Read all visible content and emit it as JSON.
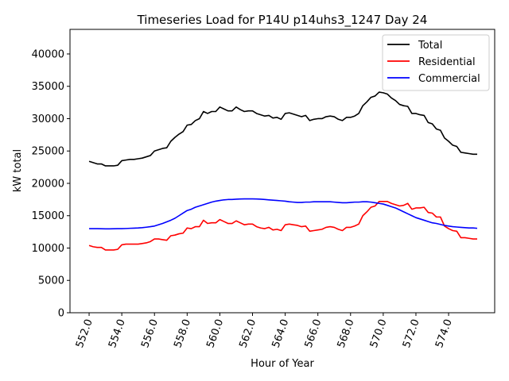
{
  "chart_data": {
    "type": "line",
    "title": "Timeseries Load for P14U p14uhs3_1247  Day 24",
    "xlabel": "Hour of Year",
    "ylabel": "kW total",
    "xlim": [
      550.83,
      576.82
    ],
    "ylim": [
      0,
      43800
    ],
    "x_ticks": [
      552,
      554,
      556,
      558,
      560,
      562,
      564,
      566,
      568,
      570,
      572,
      574
    ],
    "x_tick_labels": [
      "552.0",
      "554.0",
      "556.0",
      "558.0",
      "560.0",
      "562.0",
      "564.0",
      "566.0",
      "568.0",
      "570.0",
      "572.0",
      "574.0"
    ],
    "y_ticks": [
      0,
      5000,
      10000,
      15000,
      20000,
      25000,
      30000,
      35000,
      40000
    ],
    "y_tick_labels": [
      "0",
      "5000",
      "10000",
      "15000",
      "20000",
      "25000",
      "30000",
      "35000",
      "40000"
    ],
    "grid": false,
    "legend_position": "top-right",
    "x_start": 552.0,
    "x_step": 0.25,
    "series": [
      {
        "name": "Total",
        "color": "#000000",
        "values": [
          23400,
          23200,
          23000,
          23000,
          22700,
          22700,
          22700,
          22800,
          23500,
          23600,
          23700,
          23700,
          23800,
          23900,
          24100,
          24300,
          25000,
          25200,
          25400,
          25500,
          26500,
          27100,
          27600,
          28000,
          29000,
          29100,
          29700,
          30000,
          31100,
          30800,
          31100,
          31100,
          31800,
          31500,
          31200,
          31200,
          31800,
          31400,
          31100,
          31200,
          31200,
          30800,
          30600,
          30400,
          30500,
          30100,
          30200,
          29900,
          30800,
          30900,
          30700,
          30500,
          30300,
          30500,
          29700,
          29900,
          30000,
          30000,
          30300,
          30400,
          30300,
          29900,
          29700,
          30200,
          30200,
          30400,
          30800,
          32000,
          32600,
          33300,
          33500,
          34100,
          34000,
          33800,
          33200,
          32800,
          32200,
          32000,
          31900,
          30800,
          30800,
          30600,
          30500,
          29400,
          29200,
          28400,
          28200,
          27000,
          26500,
          25900,
          25700,
          24800,
          24700,
          24600,
          24500,
          24500
        ]
      },
      {
        "name": "Residential",
        "color": "#ff0000",
        "values": [
          10400,
          10200,
          10100,
          10100,
          9700,
          9700,
          9700,
          9800,
          10500,
          10600,
          10600,
          10600,
          10600,
          10700,
          10800,
          11000,
          11400,
          11400,
          11300,
          11200,
          11900,
          12000,
          12200,
          12300,
          13100,
          13000,
          13300,
          13300,
          14300,
          13800,
          13900,
          13900,
          14400,
          14100,
          13800,
          13800,
          14200,
          13900,
          13600,
          13700,
          13700,
          13300,
          13100,
          13000,
          13200,
          12800,
          12900,
          12700,
          13600,
          13700,
          13600,
          13500,
          13300,
          13400,
          12600,
          12700,
          12800,
          12900,
          13200,
          13300,
          13200,
          12900,
          12700,
          13200,
          13200,
          13400,
          13700,
          15000,
          15600,
          16300,
          16500,
          17200,
          17200,
          17200,
          16900,
          16700,
          16500,
          16600,
          16900,
          16000,
          16200,
          16200,
          16300,
          15500,
          15400,
          14800,
          14800,
          13400,
          13000,
          12700,
          12600,
          11600,
          11600,
          11500,
          11400,
          11400
        ]
      },
      {
        "name": "Commercial",
        "color": "#0000ff",
        "values": [
          13000,
          13000,
          13000,
          12980,
          12970,
          12970,
          12980,
          13000,
          13000,
          13020,
          13050,
          13080,
          13100,
          13150,
          13220,
          13300,
          13400,
          13600,
          13800,
          14050,
          14300,
          14600,
          15000,
          15400,
          15800,
          16000,
          16300,
          16500,
          16700,
          16900,
          17100,
          17250,
          17350,
          17450,
          17500,
          17500,
          17550,
          17580,
          17600,
          17600,
          17600,
          17580,
          17550,
          17500,
          17450,
          17400,
          17350,
          17300,
          17250,
          17150,
          17100,
          17050,
          17050,
          17100,
          17100,
          17150,
          17150,
          17150,
          17150,
          17150,
          17100,
          17050,
          17000,
          17000,
          17050,
          17100,
          17100,
          17150,
          17150,
          17100,
          17000,
          16900,
          16800,
          16600,
          16400,
          16200,
          15900,
          15600,
          15300,
          15000,
          14700,
          14500,
          14300,
          14100,
          13900,
          13800,
          13650,
          13500,
          13400,
          13300,
          13250,
          13200,
          13150,
          13100,
          13100,
          13050
        ]
      }
    ]
  }
}
